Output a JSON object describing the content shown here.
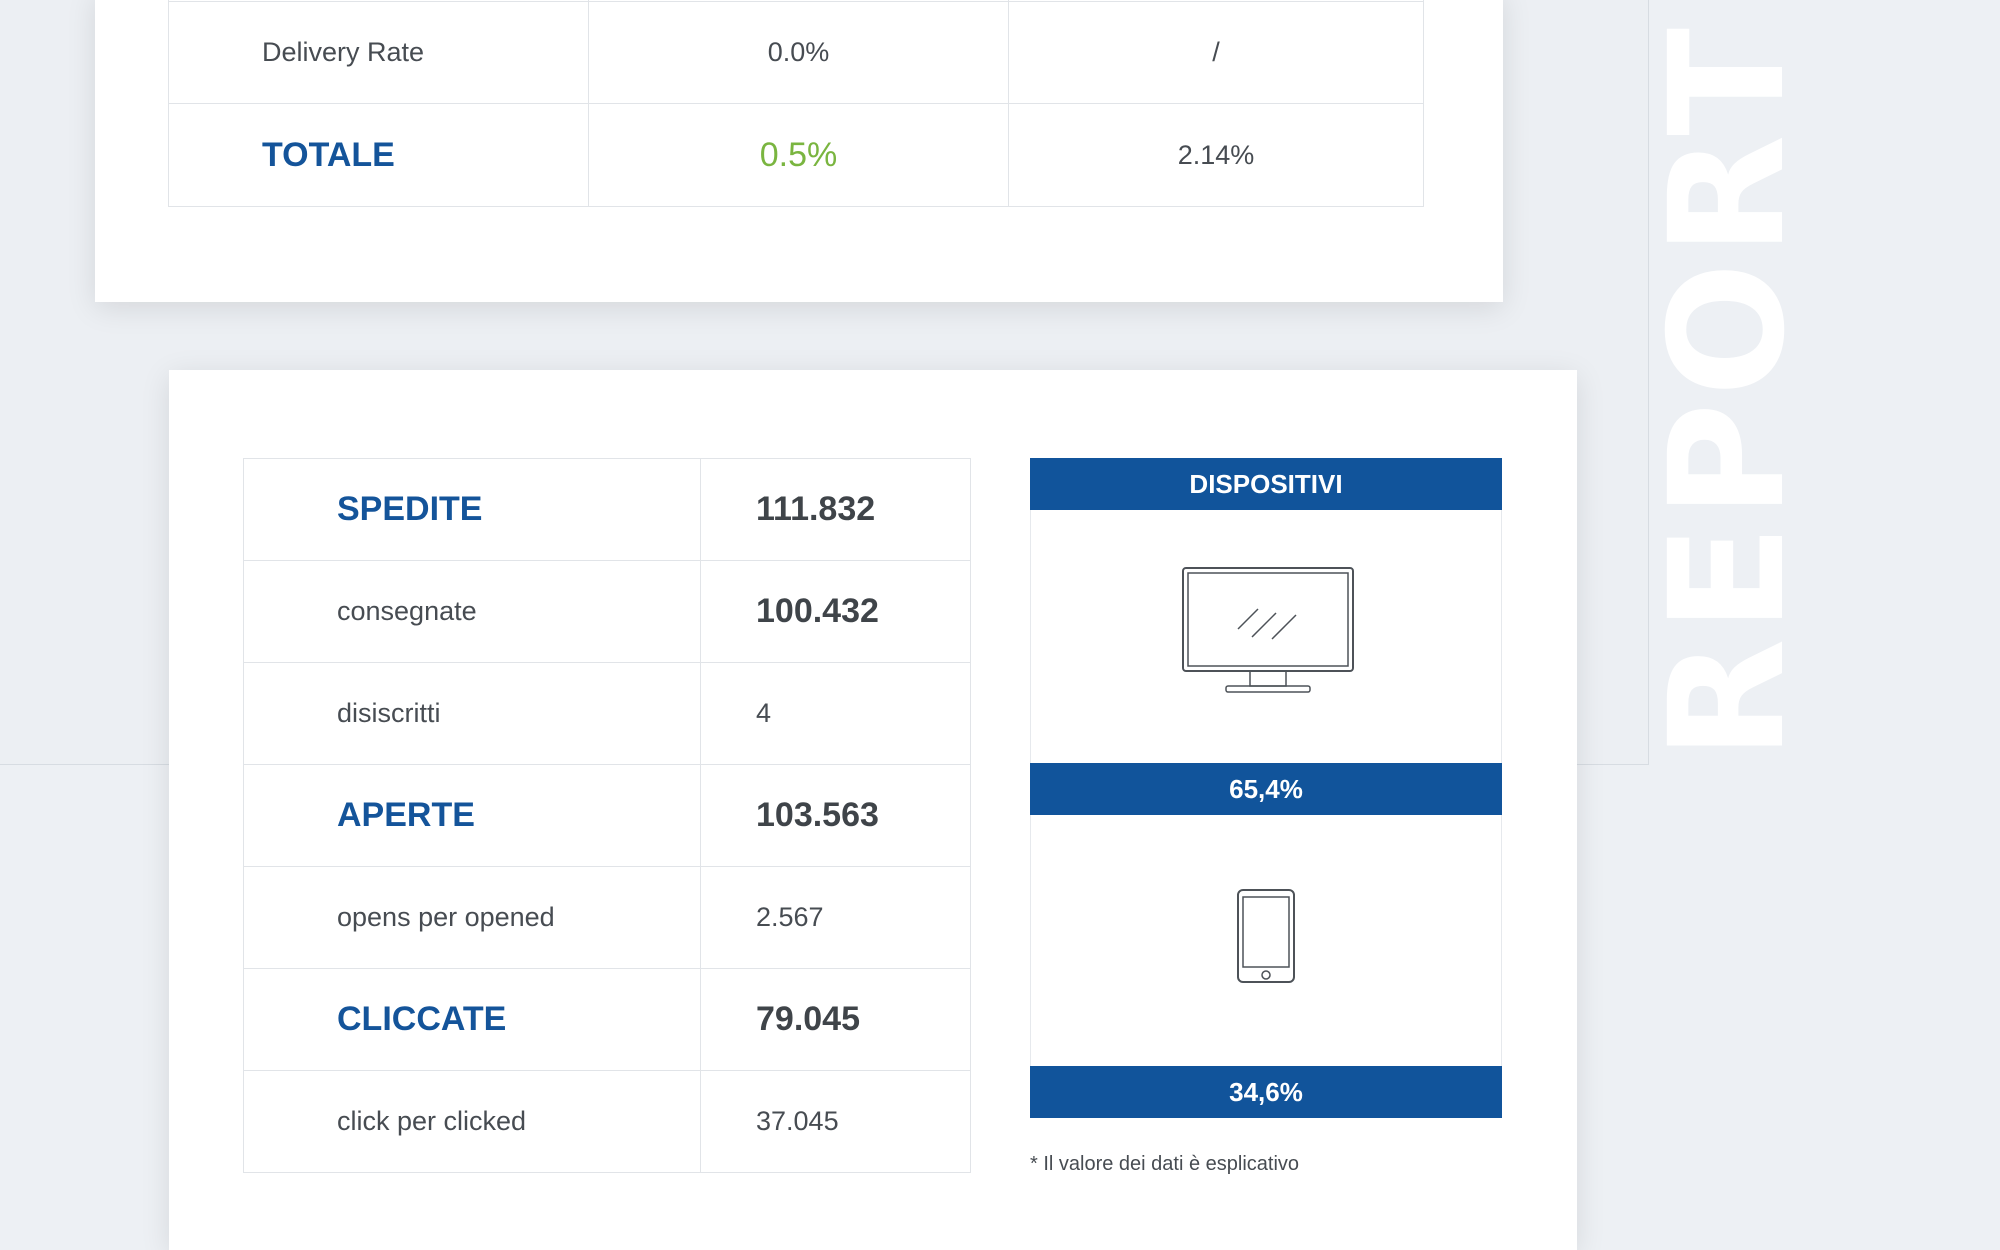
{
  "side_title": "REPORT S",
  "rates_table": {
    "rows": [
      {
        "label": "Delivery Rate",
        "value1": "0.0%",
        "value2": "/"
      }
    ],
    "total": {
      "label": "TOTALE",
      "value1": "0.5%",
      "value2": "2.14%"
    }
  },
  "stats_table": {
    "rows": [
      {
        "label": "SPEDITE",
        "value": "111.832"
      },
      {
        "label": "consegnate",
        "value": "100.432"
      },
      {
        "label": "disiscritti",
        "value": "4"
      },
      {
        "label": "APERTE",
        "value": "103.563"
      },
      {
        "label": "opens per opened",
        "value": "2.567"
      },
      {
        "label": "CLICCATE",
        "value": "79.045"
      },
      {
        "label": "click per clicked",
        "value": "37.045"
      }
    ]
  },
  "devices": {
    "header": "DISPOSITIVI",
    "desktop_icon": "desktop-monitor-icon",
    "desktop_percent": "65,4%",
    "mobile_icon": "smartphone-icon",
    "mobile_percent": "34,6%"
  },
  "footnote": "* Il valore dei dati è esplicativo",
  "colors": {
    "brand_blue": "#11549b",
    "accent_green": "#7ab540",
    "background": "#edf0f4"
  }
}
